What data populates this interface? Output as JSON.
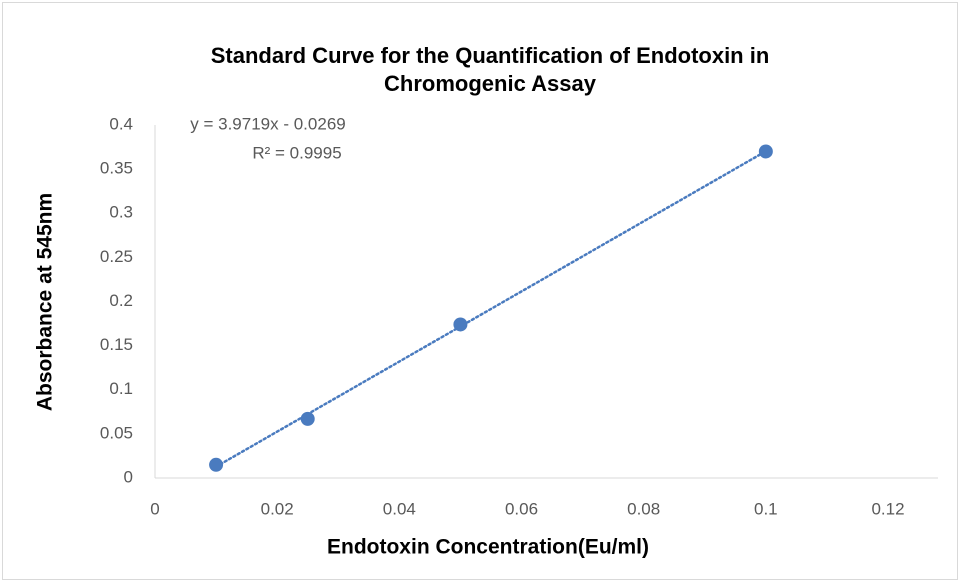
{
  "chart_data": {
    "type": "scatter",
    "title": "Standard Curve for the Quantification of Endotoxin in Chromogenic Assay",
    "x_label": "Endotoxin Concentration(Eu/ml)",
    "y_label": "Absorbance at 545nm",
    "series": [
      {
        "name": "Absorbance",
        "color": "#4a7bbf",
        "x": [
          0.01,
          0.025,
          0.05,
          0.1
        ],
        "values": [
          0.015,
          0.067,
          0.174,
          0.37
        ]
      }
    ],
    "trendline": {
      "label": "y = 3.9719x - 0.0269",
      "slope": 3.9719,
      "intercept": -0.0269,
      "r2_label": "R² = 0.9995",
      "color": "#4a7bbf"
    },
    "xlim": [
      0,
      0.12
    ],
    "xticks": [
      0,
      0.02,
      0.04,
      0.06,
      0.08,
      0.1,
      0.12
    ],
    "ylim": [
      0,
      0.4
    ],
    "yticks": [
      0,
      0.05,
      0.1,
      0.15,
      0.2,
      0.25,
      0.3,
      0.35,
      0.4
    ],
    "grid": false
  }
}
